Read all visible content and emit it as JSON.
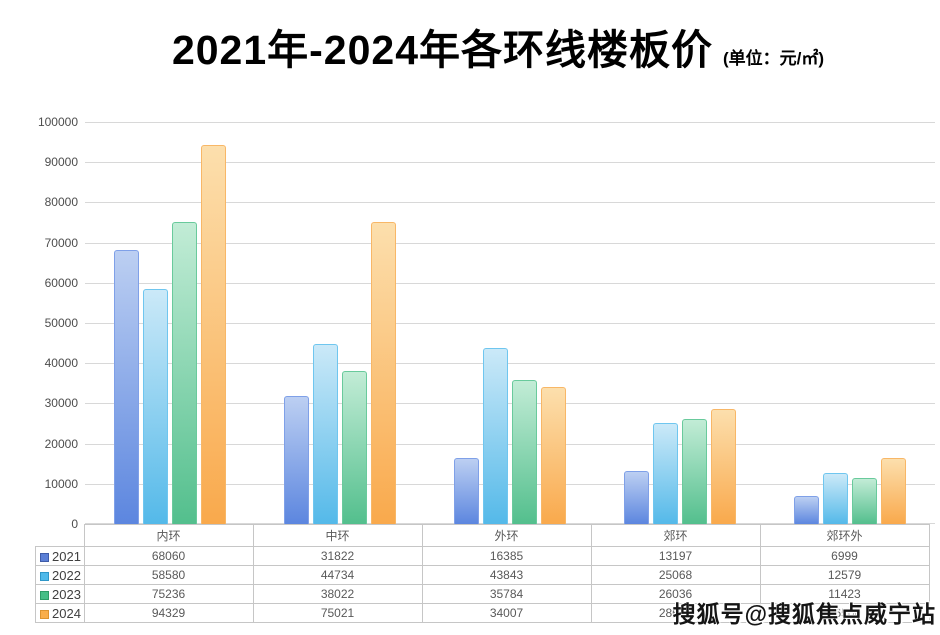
{
  "title": {
    "main": "2021年-2024年各环线楼板价",
    "unit": "(单位：元/㎡)"
  },
  "chart_data": {
    "type": "bar",
    "title": "2021年-2024年各环线楼板价",
    "unit_label": "元/㎡",
    "categories": [
      "内环",
      "中环",
      "外环",
      "郊环",
      "郊环外"
    ],
    "series": [
      {
        "name": "2021",
        "values": [
          68060,
          31822,
          16385,
          13197,
          6999
        ],
        "color": "#5b7fd6",
        "key_border": "#3f5ca8",
        "grad_top": "#bccff2",
        "grad_bottom": "#5c86df",
        "bar_border": "#7fa0e8"
      },
      {
        "name": "2022",
        "values": [
          58580,
          44734,
          43843,
          25068,
          12579
        ],
        "color": "#4fb9ea",
        "key_border": "#2e96c8",
        "grad_top": "#cbe9f8",
        "grad_bottom": "#54b9e9",
        "bar_border": "#6fc6ef"
      },
      {
        "name": "2023",
        "values": [
          75236,
          38022,
          35784,
          26036,
          11423
        ],
        "color": "#45be86",
        "key_border": "#2c9c66",
        "grad_top": "#c2ecd6",
        "grad_bottom": "#53bf8d",
        "bar_border": "#69ca9c"
      },
      {
        "name": "2024",
        "values": [
          94329,
          75021,
          34007,
          28647,
          16500
        ],
        "color": "#f9ae4b",
        "key_border": "#dd9430",
        "grad_top": "#fcdfad",
        "grad_bottom": "#f9a94c",
        "bar_border": "#f8b767"
      }
    ],
    "ylim": [
      0,
      100000
    ],
    "ytick_step": 10000,
    "grid": true,
    "legend_position": "table-left",
    "xlabel": "",
    "ylabel": ""
  },
  "watermark": {
    "text": "搜狐号@搜狐焦点威宁站"
  },
  "colors": {
    "gridline": "#d8d8d8",
    "table_border": "#c6c6c6",
    "axis_text": "#4d4d4d",
    "table_text": "#595959",
    "background": "#ffffff"
  }
}
